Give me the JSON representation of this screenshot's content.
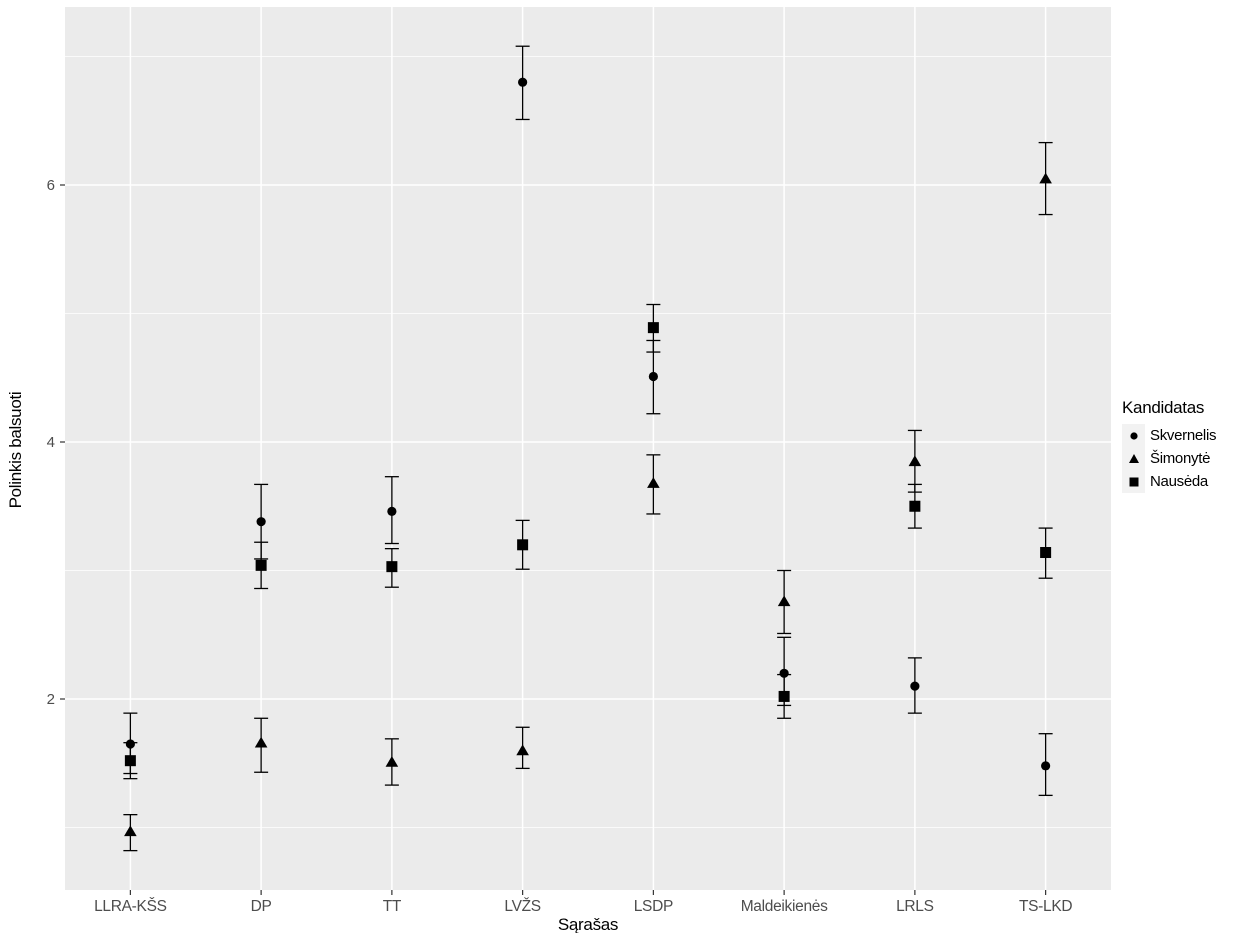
{
  "chart_data": {
    "type": "scatter",
    "title": "",
    "xlabel": "Sąrašas",
    "ylabel": "Polinkis balsuoti",
    "x_categories": [
      "LLRA-KŠS",
      "DP",
      "TT",
      "LVŽS",
      "LSDP",
      "Maldeikienės",
      "LRLS",
      "TS-LKD"
    ],
    "y_ticks": [
      2,
      4,
      6
    ],
    "y_minor_gridlines": [
      1,
      3,
      5,
      7
    ],
    "ylim": [
      0.5,
      7.4
    ],
    "grid": true,
    "legend_title": "Kandidatas",
    "legend_position": "right",
    "series": [
      {
        "name": "Skvernelis",
        "marker": "circle",
        "values": [
          1.65,
          3.38,
          3.46,
          6.8,
          4.51,
          2.2,
          2.1,
          1.48
        ],
        "ci_low": [
          1.42,
          3.09,
          3.21,
          6.51,
          4.22,
          1.95,
          1.89,
          1.25
        ],
        "ci_high": [
          1.89,
          3.67,
          3.73,
          7.08,
          4.79,
          2.48,
          2.32,
          1.73
        ]
      },
      {
        "name": "Šimonytė",
        "marker": "triangle",
        "values": [
          0.97,
          1.66,
          1.51,
          1.6,
          3.68,
          2.76,
          3.85,
          6.05
        ],
        "ci_low": [
          0.82,
          1.43,
          1.33,
          1.46,
          3.44,
          2.51,
          3.61,
          5.77
        ],
        "ci_high": [
          1.1,
          1.85,
          1.69,
          1.78,
          3.9,
          3.0,
          4.09,
          6.33
        ]
      },
      {
        "name": "Nausėda",
        "marker": "square",
        "values": [
          1.52,
          3.04,
          3.03,
          3.2,
          4.89,
          2.02,
          3.5,
          3.14
        ],
        "ci_low": [
          1.38,
          2.86,
          2.87,
          3.01,
          4.7,
          1.85,
          3.33,
          2.94
        ],
        "ci_high": [
          1.66,
          3.22,
          3.17,
          3.39,
          5.07,
          2.19,
          3.67,
          3.33
        ]
      }
    ],
    "colors": {
      "panel_bg": "#ebebeb",
      "gridline": "#ffffff",
      "point": "#000000",
      "tick_text": "#4d4d4d",
      "axis_title_text": "#000000",
      "legend_key_bg": "#f2f2f2"
    }
  }
}
